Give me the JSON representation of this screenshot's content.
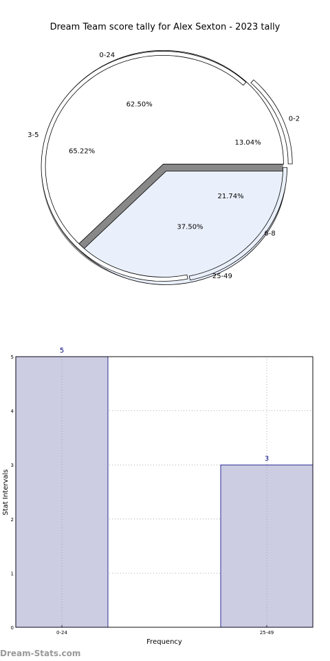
{
  "watermark": "Dream-Stats.com",
  "colors": {
    "pie_light": "#ffffff",
    "pie_blue": "#eaf0fb",
    "bar_fill": "#ccccE3",
    "bar_edge": "#000080",
    "shadow": "#888888"
  },
  "chart_data": [
    {
      "type": "pie",
      "title": "Dream Team score tally for Alex Sexton - 2023 tally",
      "rings": [
        {
          "name": "outer",
          "slices": [
            {
              "label": "0-24",
              "value": 62.5,
              "pct_label": "62.50%"
            },
            {
              "label": "25-49",
              "value": 37.5,
              "pct_label": "37.50%"
            }
          ]
        },
        {
          "name": "inner",
          "slices": [
            {
              "label": "0-2",
              "value": 13.04,
              "pct_label": "13.04%"
            },
            {
              "label": "3-5",
              "value": 65.22,
              "pct_label": "65.22%"
            },
            {
              "label": "6-8",
              "value": 21.74,
              "pct_label": "21.74%"
            }
          ]
        }
      ]
    },
    {
      "type": "bar",
      "categories": [
        "0-24",
        "25-49"
      ],
      "values": [
        5,
        3
      ],
      "value_labels": [
        "5",
        "3"
      ],
      "xlabel": "Frequency",
      "ylabel": "Stat Intervals",
      "ylim": [
        0,
        5
      ],
      "yticks": [
        "0",
        "1",
        "2",
        "3",
        "4",
        "5"
      ],
      "grid": true
    }
  ]
}
